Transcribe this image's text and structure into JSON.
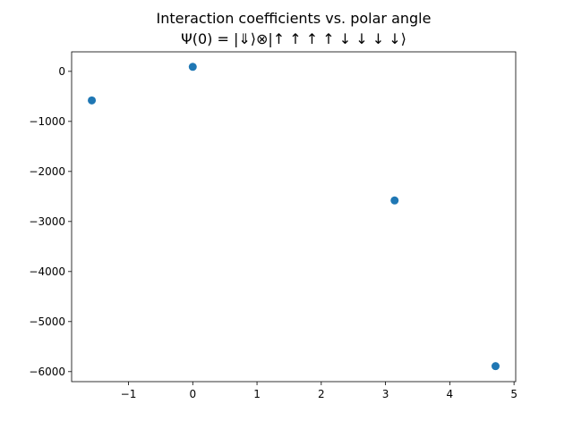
{
  "chart_data": {
    "type": "scatter",
    "title": "Interaction coefficients vs. polar angle",
    "subtitle": "Ψ(0) = |⇓⟩⊗|↑ ↑ ↑ ↑ ↓ ↓ ↓ ↓⟩",
    "xlabel": "",
    "ylabel": "",
    "xlim": [
      -1.885,
      5.026
    ],
    "ylim": [
      -6200,
      390
    ],
    "grid": false,
    "legend": "none",
    "x_ticks": [
      -1,
      0,
      1,
      2,
      3,
      4,
      5
    ],
    "y_ticks": [
      0,
      -1000,
      -2000,
      -3000,
      -4000,
      -5000,
      -6000
    ],
    "x_tick_labels": [
      "−1",
      "0",
      "1",
      "2",
      "3",
      "4",
      "5"
    ],
    "y_tick_labels": [
      "0",
      "−1000",
      "−2000",
      "−3000",
      "−4000",
      "−5000",
      "−6000"
    ],
    "series": [
      {
        "color": "#1f77b4",
        "marker": "circle",
        "x": [
          -1.5708,
          0,
          3.1416,
          4.7124
        ],
        "y": [
          -580,
          90,
          -2580,
          -5890
        ]
      }
    ]
  }
}
